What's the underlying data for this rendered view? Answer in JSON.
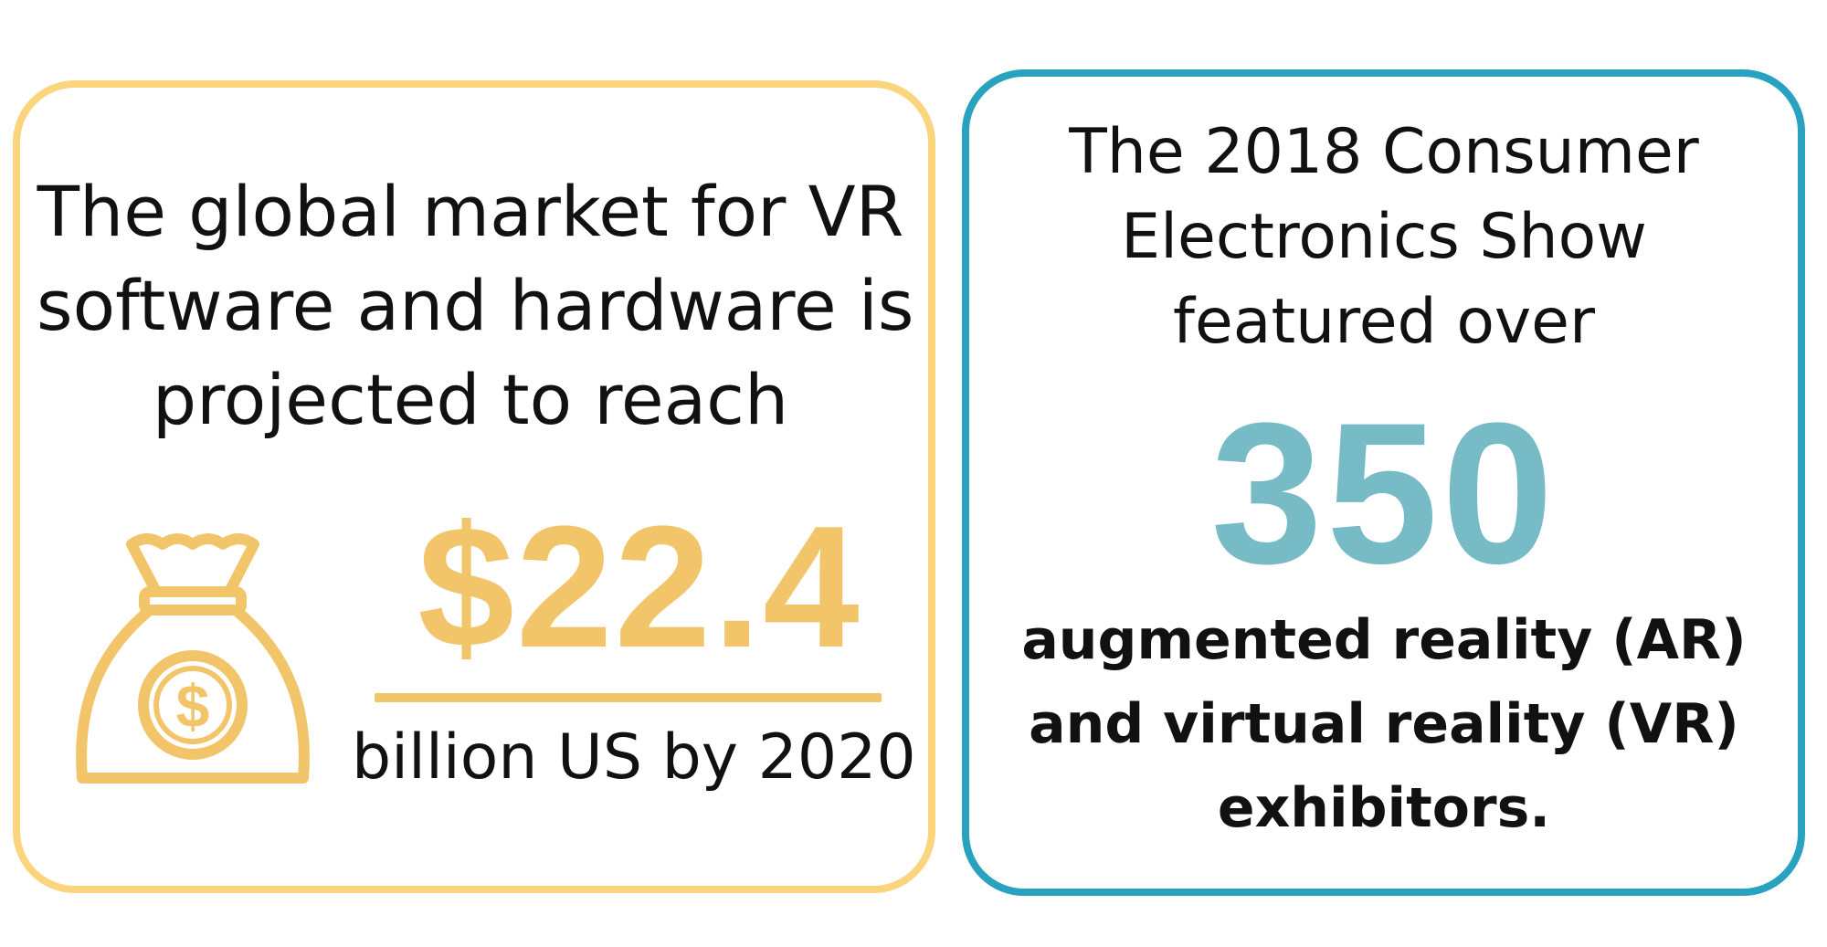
{
  "left_card": {
    "headline_lines": [
      "The global market for VR",
      "software and hardware is",
      "projected to reach"
    ],
    "figure": "$22.4",
    "caption": "billion US by 2020",
    "icon": "money-bag-icon",
    "accent_color": "#f2c56a",
    "border_color": "#fad57e"
  },
  "right_card": {
    "headline_lines": [
      "The 2018 Consumer",
      "Electronics Show",
      "featured over"
    ],
    "figure": "350",
    "body_lines": [
      "augmented reality (AR)",
      "and virtual reality (VR)",
      "exhibitors."
    ],
    "accent_color": "#77bbc6",
    "border_color": "#28a2bf"
  }
}
